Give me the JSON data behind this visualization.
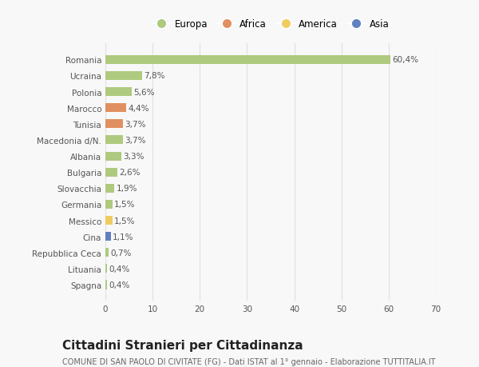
{
  "categories": [
    "Spagna",
    "Lituania",
    "Repubblica Ceca",
    "Cina",
    "Messico",
    "Germania",
    "Slovacchia",
    "Bulgaria",
    "Albania",
    "Macedonia d/N.",
    "Tunisia",
    "Marocco",
    "Polonia",
    "Ucraina",
    "Romania"
  ],
  "values": [
    0.4,
    0.4,
    0.7,
    1.1,
    1.5,
    1.5,
    1.9,
    2.6,
    3.3,
    3.7,
    3.7,
    4.4,
    5.6,
    7.8,
    60.4
  ],
  "labels": [
    "0,4%",
    "0,4%",
    "0,7%",
    "1,1%",
    "1,5%",
    "1,5%",
    "1,9%",
    "2,6%",
    "3,3%",
    "3,7%",
    "3,7%",
    "4,4%",
    "5,6%",
    "7,8%",
    "60,4%"
  ],
  "colors": [
    "#aeca7e",
    "#aeca7e",
    "#aeca7e",
    "#6080c0",
    "#f0cc60",
    "#aeca7e",
    "#aeca7e",
    "#aeca7e",
    "#aeca7e",
    "#aeca7e",
    "#e09060",
    "#e09060",
    "#aeca7e",
    "#aeca7e",
    "#aeca7e"
  ],
  "legend_labels": [
    "Europa",
    "Africa",
    "America",
    "Asia"
  ],
  "legend_colors": [
    "#aeca7e",
    "#e09060",
    "#f0cc60",
    "#6080c0"
  ],
  "xlim": [
    0,
    70
  ],
  "xticks": [
    0,
    10,
    20,
    30,
    40,
    50,
    60,
    70
  ],
  "title": "Cittadini Stranieri per Cittadinanza",
  "subtitle": "COMUNE DI SAN PAOLO DI CIVITATE (FG) - Dati ISTAT al 1° gennaio - Elaborazione TUTTITALIA.IT",
  "bar_height": 0.55,
  "bg_color": "#f8f8f8",
  "grid_color": "#e0e0e0",
  "label_fontsize": 7.5,
  "ytick_fontsize": 7.5,
  "xtick_fontsize": 7.5,
  "title_fontsize": 11,
  "subtitle_fontsize": 7,
  "legend_fontsize": 8.5
}
